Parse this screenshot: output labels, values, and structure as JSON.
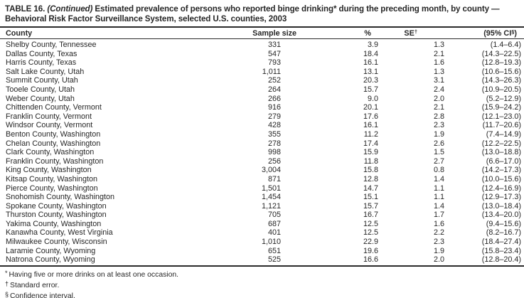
{
  "title": {
    "table_label": "TABLE 16.",
    "continued": "(Continued)",
    "line1_rest": "Estimated prevalence of persons who reported binge drinking* during the preceding month, by county —",
    "line2": "Behavioral Risk Factor Surveillance System, selected U.S. counties, 2003"
  },
  "table": {
    "headers": {
      "county": "County",
      "sample_size": "Sample size",
      "percent": "%",
      "se": "SE",
      "se_sup": "†",
      "ci_pre": "(95% CI",
      "ci_sup": "§",
      "ci_close": ")"
    },
    "rows": [
      {
        "county": "Shelby County, Tennessee",
        "sample_size": "331",
        "pct": "3.9",
        "se": "1.3",
        "ci": "(1.4–6.4)"
      },
      {
        "county": "Dallas County, Texas",
        "sample_size": "547",
        "pct": "18.4",
        "se": "2.1",
        "ci": "(14.3–22.5)"
      },
      {
        "county": "Harris County, Texas",
        "sample_size": "793",
        "pct": "16.1",
        "se": "1.6",
        "ci": "(12.8–19.3)"
      },
      {
        "county": "Salt Lake County, Utah",
        "sample_size": "1,011",
        "pct": "13.1",
        "se": "1.3",
        "ci": "(10.6–15.6)"
      },
      {
        "county": "Summit County, Utah",
        "sample_size": "252",
        "pct": "20.3",
        "se": "3.1",
        "ci": "(14.3–26.3)"
      },
      {
        "county": "Tooele County, Utah",
        "sample_size": "264",
        "pct": "15.7",
        "se": "2.4",
        "ci": "(10.9–20.5)"
      },
      {
        "county": "Weber County, Utah",
        "sample_size": "266",
        "pct": "9.0",
        "se": "2.0",
        "ci": "(5.2–12.9)"
      },
      {
        "county": "Chittenden County, Vermont",
        "sample_size": "916",
        "pct": "20.1",
        "se": "2.1",
        "ci": "(15.9–24.2)"
      },
      {
        "county": "Franklin County, Vermont",
        "sample_size": "279",
        "pct": "17.6",
        "se": "2.8",
        "ci": "(12.1–23.0)"
      },
      {
        "county": "Windsor County, Vermont",
        "sample_size": "428",
        "pct": "16.1",
        "se": "2.3",
        "ci": "(11.7–20.6)"
      },
      {
        "county": "Benton County, Washington",
        "sample_size": "355",
        "pct": "11.2",
        "se": "1.9",
        "ci": "(7.4–14.9)"
      },
      {
        "county": "Chelan County, Washington",
        "sample_size": "278",
        "pct": "17.4",
        "se": "2.6",
        "ci": "(12.2–22.5)"
      },
      {
        "county": "Clark County, Washington",
        "sample_size": "998",
        "pct": "15.9",
        "se": "1.5",
        "ci": "(13.0–18.8)"
      },
      {
        "county": "Franklin County, Washington",
        "sample_size": "256",
        "pct": "11.8",
        "se": "2.7",
        "ci": "(6.6–17.0)"
      },
      {
        "county": "King County, Washington",
        "sample_size": "3,004",
        "pct": "15.8",
        "se": "0.8",
        "ci": "(14.2–17.3)"
      },
      {
        "county": "Kitsap County, Washington",
        "sample_size": "871",
        "pct": "12.8",
        "se": "1.4",
        "ci": "(10.0–15.6)"
      },
      {
        "county": "Pierce County, Washington",
        "sample_size": "1,501",
        "pct": "14.7",
        "se": "1.1",
        "ci": "(12.4–16.9)"
      },
      {
        "county": "Snohomish County, Washington",
        "sample_size": "1,454",
        "pct": "15.1",
        "se": "1.1",
        "ci": "(12.9–17.3)"
      },
      {
        "county": "Spokane County, Washington",
        "sample_size": "1,121",
        "pct": "15.7",
        "se": "1.4",
        "ci": "(13.0–18.4)"
      },
      {
        "county": "Thurston County, Washington",
        "sample_size": "705",
        "pct": "16.7",
        "se": "1.7",
        "ci": "(13.4–20.0)"
      },
      {
        "county": "Yakima County, Washington",
        "sample_size": "687",
        "pct": "12.5",
        "se": "1.6",
        "ci": "(9.4–15.6)"
      },
      {
        "county": "Kanawha County, West Virginia",
        "sample_size": "401",
        "pct": "12.5",
        "se": "2.2",
        "ci": "(8.2–16.7)"
      },
      {
        "county": "Milwaukee County, Wisconsin",
        "sample_size": "1,010",
        "pct": "22.9",
        "se": "2.3",
        "ci": "(18.4–27.4)"
      },
      {
        "county": "Laramie County, Wyoming",
        "sample_size": "651",
        "pct": "19.6",
        "se": "1.9",
        "ci": "(15.8–23.4)"
      },
      {
        "county": "Natrona County, Wyoming",
        "sample_size": "525",
        "pct": "16.6",
        "se": "2.0",
        "ci": "(12.8–20.4)"
      }
    ]
  },
  "footnotes": [
    {
      "sym": "*",
      "text": "Having five or more drinks on at least one occasion."
    },
    {
      "sym": "†",
      "text": "Standard error."
    },
    {
      "sym": "§",
      "text": "Confidence interval."
    }
  ]
}
